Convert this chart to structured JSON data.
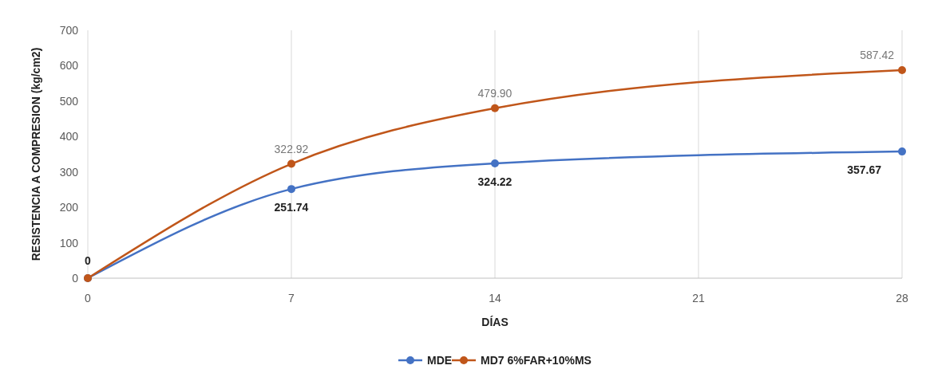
{
  "chart_data": {
    "type": "line",
    "xlabel": "DÍAS",
    "ylabel": "RESISTENCIA A COMPRESION (kg/cm2)",
    "x": [
      0,
      7,
      14,
      28
    ],
    "xlim": [
      0,
      28
    ],
    "xticks": [
      0,
      7,
      14,
      21,
      28
    ],
    "ylim": [
      0,
      700
    ],
    "yticks": [
      0,
      100,
      200,
      300,
      400,
      500,
      600,
      700
    ],
    "grid": "x",
    "legend": "bottom",
    "marker": "circle",
    "line_style": "solid",
    "series": [
      {
        "name": "MDE",
        "color": "#4472c4",
        "values": [
          0,
          251.74,
          324.22,
          357.67
        ],
        "value_labels": [
          "0",
          "251.74",
          "324.22",
          "357.67"
        ]
      },
      {
        "name": "MD7 6%FAR+10%MS",
        "color": "#c0561a",
        "values": [
          0,
          322.92,
          479.9,
          587.42
        ],
        "value_labels": [
          null,
          "322.92",
          "479.90",
          "587.42"
        ]
      }
    ]
  }
}
